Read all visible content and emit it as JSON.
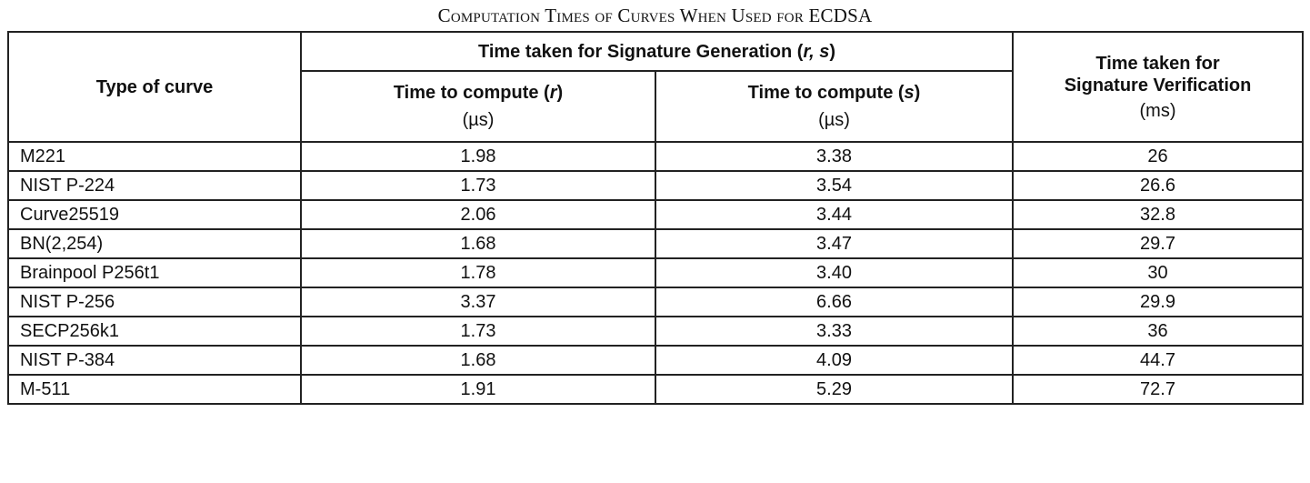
{
  "caption": "Computation Times of Curves When Used for ECDSA",
  "headers": {
    "type_of_curve": "Type of curve",
    "gen_group": {
      "prefix": "Time taken for Signature Generation (",
      "vars": "r, s",
      "suffix": ")"
    },
    "r_col": {
      "prefix": "Time to compute (",
      "var": "r",
      "suffix": ")",
      "unit": "(µs)"
    },
    "s_col": {
      "prefix": "Time to compute (",
      "var": "s",
      "suffix": ")",
      "unit": "(µs)"
    },
    "verif_col": {
      "line1": "Time taken for",
      "line2": "Signature Verification",
      "unit": "(ms)"
    }
  },
  "rows": [
    {
      "curve": "M221",
      "r": "1.98",
      "s": "3.38",
      "verify": "26"
    },
    {
      "curve": "NIST P-224",
      "r": "1.73",
      "s": "3.54",
      "verify": "26.6"
    },
    {
      "curve": "Curve25519",
      "r": "2.06",
      "s": "3.44",
      "verify": "32.8"
    },
    {
      "curve": "BN(2,254)",
      "r": "1.68",
      "s": "3.47",
      "verify": "29.7"
    },
    {
      "curve": "Brainpool P256t1",
      "r": "1.78",
      "s": "3.40",
      "verify": "30"
    },
    {
      "curve": "NIST P-256",
      "r": "3.37",
      "s": "6.66",
      "verify": "29.9"
    },
    {
      "curve": "SECP256k1",
      "r": "1.73",
      "s": "3.33",
      "verify": "36"
    },
    {
      "curve": "NIST P-384",
      "r": "1.68",
      "s": "4.09",
      "verify": "44.7"
    },
    {
      "curve": "M-511",
      "r": "1.91",
      "s": "5.29",
      "verify": "72.7"
    }
  ]
}
